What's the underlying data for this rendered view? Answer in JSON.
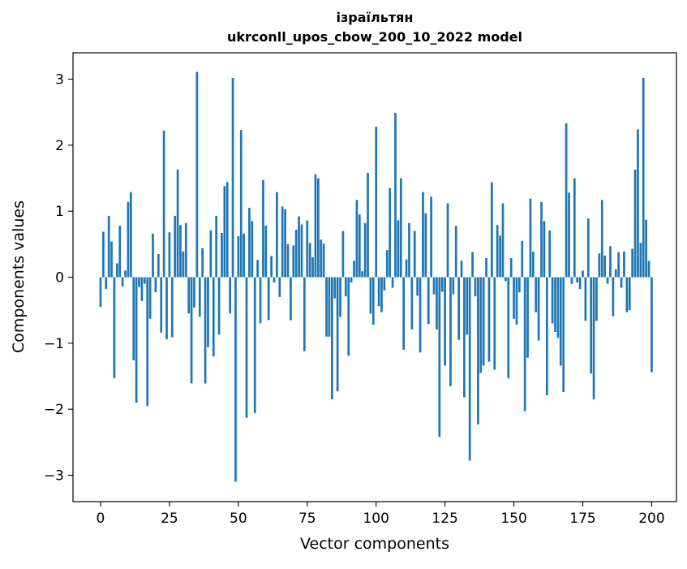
{
  "chart_data": {
    "type": "bar",
    "title_lines": [
      "ізраїльтян",
      "ukrconll_upos_cbow_200_10_2022 model"
    ],
    "xlabel": "Vector components",
    "ylabel": "Components values",
    "xlim": [
      -10,
      209
    ],
    "ylim": [
      -3.4,
      3.4
    ],
    "x_ticks": [
      0,
      25,
      50,
      75,
      100,
      125,
      150,
      175,
      200
    ],
    "y_ticks": [
      -3,
      -2,
      -1,
      0,
      1,
      2,
      3
    ],
    "y_tick_labels": [
      "−3",
      "−2",
      "−1",
      "0",
      "1",
      "2",
      "3"
    ],
    "bar_color": "#1f77b4",
    "grid": false,
    "values": [
      -0.45,
      0.69,
      -0.18,
      0.93,
      0.54,
      -1.53,
      0.21,
      0.78,
      -0.14,
      0.1,
      1.14,
      1.29,
      -1.26,
      -1.9,
      -0.15,
      -0.36,
      -0.1,
      -1.95,
      -0.63,
      0.66,
      -0.23,
      0.35,
      -0.84,
      2.22,
      -0.94,
      0.68,
      -0.91,
      0.93,
      1.63,
      0.79,
      0.39,
      0.82,
      -0.55,
      -1.61,
      -0.46,
      3.11,
      -0.6,
      0.44,
      -1.61,
      -1.06,
      0.71,
      -1.2,
      0.93,
      -0.87,
      0.67,
      1.38,
      1.44,
      -0.55,
      3.02,
      -3.1,
      0.62,
      2.23,
      0.66,
      -2.13,
      1.05,
      0.85,
      -2.06,
      0.26,
      -0.7,
      1.47,
      0.78,
      -0.65,
      0.32,
      -0.08,
      1.29,
      -0.3,
      1.07,
      1.03,
      0.5,
      -0.65,
      0.48,
      0.72,
      0.92,
      0.8,
      -1.12,
      0.86,
      0.52,
      0.3,
      1.56,
      1.5,
      0.57,
      0.51,
      -0.9,
      -0.9,
      -1.85,
      -0.32,
      -1.73,
      -0.6,
      0.7,
      -0.29,
      -1.19,
      -0.08,
      0.25,
      1.17,
      0.95,
      0.09,
      0.82,
      1.58,
      -0.55,
      -0.72,
      2.28,
      -0.44,
      -0.53,
      -0.2,
      0.41,
      1.35,
      -0.16,
      2.49,
      0.86,
      1.5,
      -1.1,
      0.27,
      0.82,
      -0.79,
      0.7,
      -0.28,
      -1.14,
      1.29,
      0.97,
      -0.71,
      1.22,
      -0.26,
      -0.79,
      -2.42,
      -0.22,
      -1.34,
      1.12,
      -1.65,
      -0.26,
      0.78,
      -0.95,
      0.25,
      -1.82,
      -0.87,
      -2.78,
      0.38,
      -0.29,
      -2.23,
      -1.45,
      -1.34,
      0.29,
      -1.28,
      1.44,
      -1.4,
      0.79,
      0.63,
      1.12,
      -0.06,
      -1.53,
      0.29,
      -0.63,
      -0.72,
      -0.23,
      0.55,
      -2.03,
      -1.22,
      1.19,
      0.39,
      -0.53,
      -0.96,
      1.14,
      0.85,
      -1.79,
      0.71,
      -0.7,
      -0.83,
      -0.92,
      -1.34,
      -1.74,
      2.33,
      1.28,
      -0.1,
      1.5,
      -0.08,
      -0.18,
      0.1,
      -0.66,
      0.89,
      -1.46,
      -1.85,
      -0.66,
      0.36,
      1.17,
      0.33,
      -0.1,
      0.47,
      -0.59,
      0.12,
      0.38,
      -0.16,
      0.39,
      -0.53,
      -0.5,
      0.43,
      1.63,
      2.24,
      0.52,
      3.02,
      0.87,
      0.25,
      -1.44
    ]
  }
}
